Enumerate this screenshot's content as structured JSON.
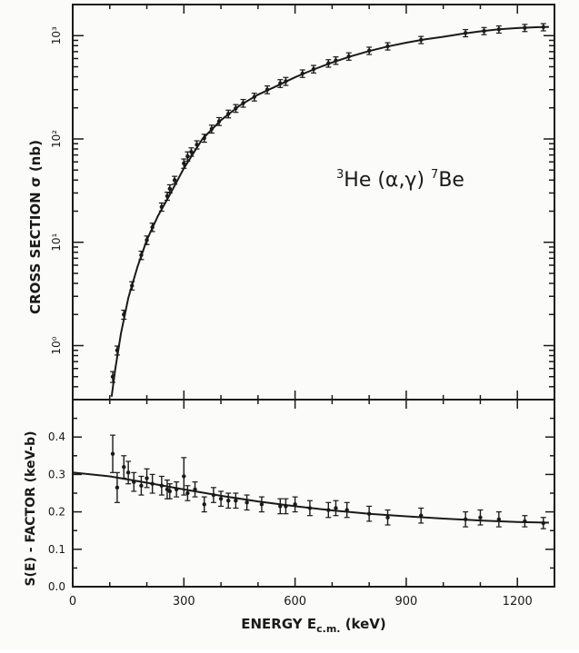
{
  "chart_data": [
    {
      "type": "scatter",
      "panel": "top",
      "ylabel": "CROSS SECTION σ (nb)",
      "annotation": "3He (α,γ) 7Be",
      "yscale": "log",
      "ylim": [
        0.3,
        2000
      ],
      "xlim": [
        0,
        1300
      ],
      "yticks": [
        {
          "value": 1,
          "label": "10⁰"
        },
        {
          "value": 10,
          "label": "10¹"
        },
        {
          "value": 100,
          "label": "10²"
        },
        {
          "value": 1000,
          "label": "10³"
        }
      ],
      "grid": false,
      "series": [
        {
          "points": [
            {
              "x": 108,
              "y": 0.5,
              "err": 0.06
            },
            {
              "x": 120,
              "y": 0.9,
              "err": 0.09
            },
            {
              "x": 138,
              "y": 2.0,
              "err": 0.2
            },
            {
              "x": 160,
              "y": 3.8,
              "err": 0.35
            },
            {
              "x": 185,
              "y": 7.5,
              "err": 0.7
            },
            {
              "x": 200,
              "y": 10.5,
              "err": 1.0
            },
            {
              "x": 215,
              "y": 14,
              "err": 1.3
            },
            {
              "x": 240,
              "y": 22,
              "err": 2
            },
            {
              "x": 255,
              "y": 28,
              "err": 2.5
            },
            {
              "x": 262,
              "y": 33,
              "err": 3
            },
            {
              "x": 275,
              "y": 40,
              "err": 3.5
            },
            {
              "x": 300,
              "y": 58,
              "err": 6
            },
            {
              "x": 310,
              "y": 68,
              "err": 7
            },
            {
              "x": 320,
              "y": 75,
              "err": 7
            },
            {
              "x": 335,
              "y": 88,
              "err": 8
            },
            {
              "x": 355,
              "y": 102,
              "err": 9
            },
            {
              "x": 375,
              "y": 125,
              "err": 11
            },
            {
              "x": 395,
              "y": 148,
              "err": 13
            },
            {
              "x": 420,
              "y": 175,
              "err": 15
            },
            {
              "x": 440,
              "y": 198,
              "err": 17
            },
            {
              "x": 460,
              "y": 222,
              "err": 19
            },
            {
              "x": 490,
              "y": 255,
              "err": 22
            },
            {
              "x": 525,
              "y": 300,
              "err": 26
            },
            {
              "x": 560,
              "y": 345,
              "err": 30
            },
            {
              "x": 575,
              "y": 362,
              "err": 32
            },
            {
              "x": 620,
              "y": 430,
              "err": 36
            },
            {
              "x": 650,
              "y": 475,
              "err": 40
            },
            {
              "x": 690,
              "y": 540,
              "err": 45
            },
            {
              "x": 710,
              "y": 575,
              "err": 48
            },
            {
              "x": 745,
              "y": 630,
              "err": 52
            },
            {
              "x": 800,
              "y": 715,
              "err": 58
            },
            {
              "x": 850,
              "y": 790,
              "err": 64
            },
            {
              "x": 940,
              "y": 910,
              "err": 73
            },
            {
              "x": 1060,
              "y": 1060,
              "err": 85
            },
            {
              "x": 1110,
              "y": 1110,
              "err": 88
            },
            {
              "x": 1150,
              "y": 1150,
              "err": 92
            },
            {
              "x": 1220,
              "y": 1190,
              "err": 95
            },
            {
              "x": 1270,
              "y": 1210,
              "err": 97
            }
          ]
        }
      ],
      "fit_curve": [
        [
          105,
          0.32
        ],
        [
          115,
          0.6
        ],
        [
          130,
          1.3
        ],
        [
          150,
          2.9
        ],
        [
          175,
          5.8
        ],
        [
          200,
          10.5
        ],
        [
          230,
          18
        ],
        [
          260,
          28
        ],
        [
          300,
          52
        ],
        [
          350,
          100
        ],
        [
          400,
          152
        ],
        [
          450,
          210
        ],
        [
          500,
          268
        ],
        [
          550,
          325
        ],
        [
          600,
          395
        ],
        [
          650,
          470
        ],
        [
          700,
          550
        ],
        [
          750,
          630
        ],
        [
          800,
          710
        ],
        [
          850,
          785
        ],
        [
          900,
          855
        ],
        [
          950,
          920
        ],
        [
          1000,
          975
        ],
        [
          1050,
          1040
        ],
        [
          1100,
          1100
        ],
        [
          1150,
          1150
        ],
        [
          1200,
          1185
        ],
        [
          1250,
          1205
        ],
        [
          1285,
          1215
        ]
      ]
    },
    {
      "type": "scatter",
      "panel": "bottom",
      "xlabel": "ENERGY  E c.m. (keV)",
      "ylabel": "S(E) - FACTOR  (keV-b)",
      "xlim": [
        0,
        1300
      ],
      "ylim": [
        0,
        0.5
      ],
      "xticks": [
        0,
        300,
        600,
        900,
        1200
      ],
      "yticks": [
        "0.0",
        "0.1",
        "0.2",
        "0.3",
        "0.4"
      ],
      "grid": false,
      "series": [
        {
          "points": [
            {
              "x": 108,
              "y": 0.355,
              "err": 0.05
            },
            {
              "x": 120,
              "y": 0.265,
              "err": 0.04
            },
            {
              "x": 138,
              "y": 0.32,
              "err": 0.03
            },
            {
              "x": 150,
              "y": 0.305,
              "err": 0.03
            },
            {
              "x": 165,
              "y": 0.28,
              "err": 0.025
            },
            {
              "x": 185,
              "y": 0.27,
              "err": 0.025
            },
            {
              "x": 200,
              "y": 0.29,
              "err": 0.025
            },
            {
              "x": 215,
              "y": 0.275,
              "err": 0.025
            },
            {
              "x": 240,
              "y": 0.27,
              "err": 0.025
            },
            {
              "x": 255,
              "y": 0.26,
              "err": 0.025
            },
            {
              "x": 262,
              "y": 0.255,
              "err": 0.02
            },
            {
              "x": 280,
              "y": 0.26,
              "err": 0.02
            },
            {
              "x": 300,
              "y": 0.295,
              "err": 0.05
            },
            {
              "x": 310,
              "y": 0.25,
              "err": 0.02
            },
            {
              "x": 330,
              "y": 0.26,
              "err": 0.02
            },
            {
              "x": 355,
              "y": 0.22,
              "err": 0.02
            },
            {
              "x": 380,
              "y": 0.245,
              "err": 0.02
            },
            {
              "x": 400,
              "y": 0.235,
              "err": 0.02
            },
            {
              "x": 420,
              "y": 0.23,
              "err": 0.02
            },
            {
              "x": 440,
              "y": 0.23,
              "err": 0.02
            },
            {
              "x": 470,
              "y": 0.225,
              "err": 0.02
            },
            {
              "x": 510,
              "y": 0.22,
              "err": 0.02
            },
            {
              "x": 560,
              "y": 0.215,
              "err": 0.02
            },
            {
              "x": 575,
              "y": 0.215,
              "err": 0.02
            },
            {
              "x": 600,
              "y": 0.22,
              "err": 0.02
            },
            {
              "x": 640,
              "y": 0.21,
              "err": 0.02
            },
            {
              "x": 690,
              "y": 0.205,
              "err": 0.02
            },
            {
              "x": 710,
              "y": 0.21,
              "err": 0.02
            },
            {
              "x": 740,
              "y": 0.205,
              "err": 0.02
            },
            {
              "x": 800,
              "y": 0.195,
              "err": 0.02
            },
            {
              "x": 850,
              "y": 0.185,
              "err": 0.02
            },
            {
              "x": 940,
              "y": 0.19,
              "err": 0.02
            },
            {
              "x": 1060,
              "y": 0.18,
              "err": 0.02
            },
            {
              "x": 1100,
              "y": 0.185,
              "err": 0.02
            },
            {
              "x": 1150,
              "y": 0.18,
              "err": 0.02
            },
            {
              "x": 1220,
              "y": 0.175,
              "err": 0.015
            },
            {
              "x": 1270,
              "y": 0.17,
              "err": 0.015
            }
          ]
        }
      ],
      "fit_curve": [
        [
          0,
          0.305
        ],
        [
          100,
          0.295
        ],
        [
          200,
          0.278
        ],
        [
          300,
          0.26
        ],
        [
          400,
          0.243
        ],
        [
          500,
          0.228
        ],
        [
          600,
          0.215
        ],
        [
          700,
          0.204
        ],
        [
          800,
          0.195
        ],
        [
          900,
          0.188
        ],
        [
          1000,
          0.182
        ],
        [
          1100,
          0.177
        ],
        [
          1200,
          0.173
        ],
        [
          1285,
          0.171
        ]
      ]
    }
  ],
  "colors": {
    "ink": "#1a1a1a",
    "paper": "#fbfbf9"
  }
}
